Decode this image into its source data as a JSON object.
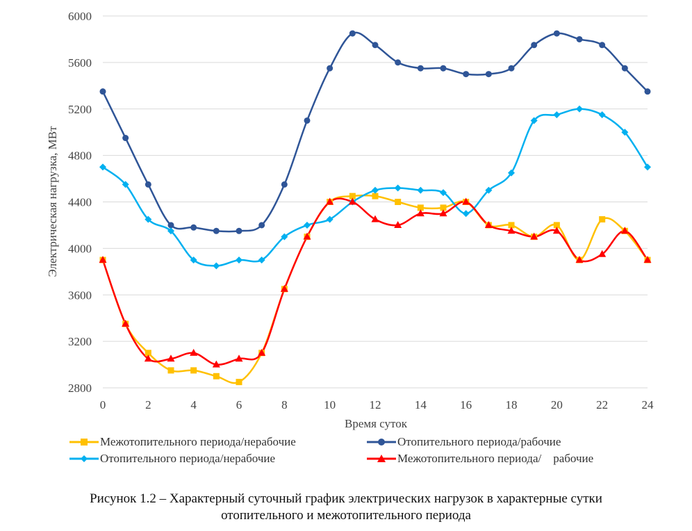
{
  "chart_data": {
    "type": "line",
    "ylabel": "Электрическая нагрузка, МВт",
    "xlabel": "Время суток",
    "ylim": [
      2800,
      6000
    ],
    "xlim": [
      0,
      24
    ],
    "yticks": [
      2800,
      3200,
      3600,
      4000,
      4400,
      4800,
      5200,
      5600,
      6000
    ],
    "xticks": [
      0,
      2,
      4,
      6,
      8,
      10,
      12,
      14,
      16,
      18,
      20,
      22,
      24
    ],
    "grid": "horizontal",
    "legend_position": "bottom",
    "x": [
      0,
      1,
      2,
      3,
      4,
      5,
      6,
      7,
      8,
      9,
      10,
      11,
      12,
      13,
      14,
      15,
      16,
      17,
      18,
      19,
      20,
      21,
      22,
      23,
      24
    ],
    "series": [
      {
        "name": "Межотопительного периода/нерабочие",
        "color": "#FFC000",
        "marker": "square",
        "values": [
          3900,
          3350,
          3100,
          2950,
          2950,
          2900,
          2850,
          3100,
          3650,
          4100,
          4400,
          4450,
          4450,
          4400,
          4350,
          4350,
          4400,
          4200,
          4200,
          4100,
          4200,
          3900,
          4250,
          4150,
          3900
        ]
      },
      {
        "name": "Отопительного периода/рабочие",
        "color": "#2F5597",
        "marker": "circle",
        "values": [
          5350,
          4950,
          4550,
          4200,
          4180,
          4150,
          4150,
          4200,
          4550,
          5100,
          5550,
          5850,
          5750,
          5600,
          5550,
          5550,
          5500,
          5500,
          5550,
          5750,
          5850,
          5800,
          5750,
          5550,
          5350
        ]
      },
      {
        "name": "Отопительного периода/нерабочие",
        "color": "#00B0F0",
        "marker": "diamond",
        "values": [
          4700,
          4550,
          4250,
          4150,
          3900,
          3850,
          3900,
          3900,
          4100,
          4200,
          4250,
          4400,
          4500,
          4520,
          4500,
          4480,
          4300,
          4500,
          4650,
          5100,
          5150,
          5200,
          5150,
          5000,
          4700
        ]
      },
      {
        "name": "Межотопительного периода/    рабочие",
        "color": "#FF0000",
        "marker": "triangle",
        "values": [
          3900,
          3350,
          3050,
          3050,
          3100,
          3000,
          3050,
          3100,
          3650,
          4100,
          4400,
          4400,
          4250,
          4200,
          4300,
          4300,
          4400,
          4200,
          4150,
          4100,
          4150,
          3900,
          3950,
          4150,
          3900
        ]
      }
    ]
  },
  "caption": {
    "line1": "Рисунок 1.2 – Характерный суточный график электрических нагрузок в характерные сутки",
    "line2": "отопительного и межотопительного периода"
  }
}
